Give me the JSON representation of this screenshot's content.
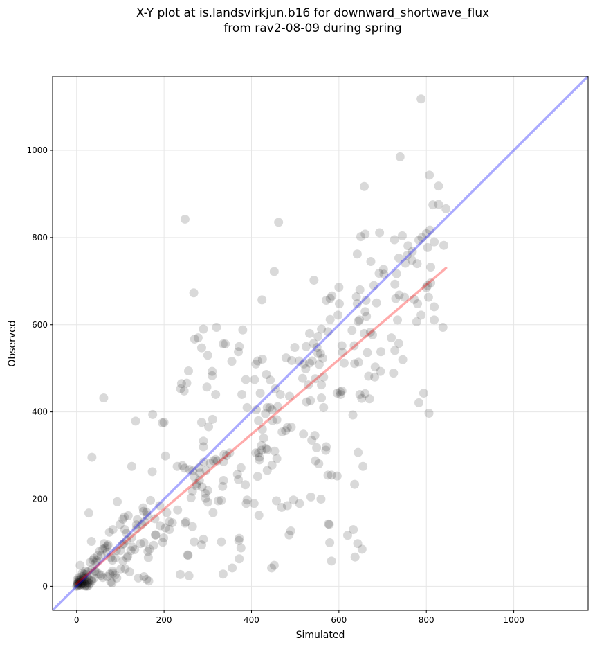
{
  "chart_data": {
    "type": "scatter",
    "title_line1": "X-Y plot at is.landsvirkjun.b16 for downward_shortwave_flux",
    "title_line2": "from rav2-08-09 during spring",
    "xlabel": "Simulated",
    "ylabel": "Observed",
    "xlim": [
      -55,
      1170
    ],
    "ylim": [
      -55,
      1170
    ],
    "xticks": [
      0,
      200,
      400,
      600,
      800,
      1000
    ],
    "yticks": [
      0,
      200,
      400,
      600,
      800,
      1000
    ],
    "grid": true,
    "colors": {
      "points": "#000000",
      "identity": "#0000ff",
      "fit": "#ff0000",
      "grid": "#e6e6e6"
    },
    "identity_line": {
      "x": [
        -55,
        1170
      ],
      "y": [
        -55,
        1170
      ]
    },
    "fit_line": {
      "x": [
        0,
        845
      ],
      "y": [
        6,
        730
      ]
    },
    "points": [
      [
        788,
        1118
      ],
      [
        740,
        985
      ],
      [
        807,
        943
      ],
      [
        828,
        918
      ],
      [
        658,
        917
      ],
      [
        815,
        875
      ],
      [
        828,
        876
      ],
      [
        845,
        866
      ],
      [
        248,
        842
      ],
      [
        462,
        835
      ],
      [
        808,
        817
      ],
      [
        660,
        808
      ],
      [
        693,
        811
      ],
      [
        800,
        809
      ],
      [
        745,
        804
      ],
      [
        790,
        800
      ],
      [
        783,
        794
      ],
      [
        818,
        790
      ],
      [
        727,
        795
      ],
      [
        758,
        781
      ],
      [
        840,
        782
      ],
      [
        650,
        802
      ],
      [
        768,
        768
      ],
      [
        803,
        777
      ],
      [
        756,
        759
      ],
      [
        673,
        745
      ],
      [
        737,
        753
      ],
      [
        767,
        748
      ],
      [
        752,
        741
      ],
      [
        692,
        718
      ],
      [
        703,
        716
      ],
      [
        732,
        717
      ],
      [
        810,
        732
      ],
      [
        779,
        740
      ],
      [
        702,
        727
      ],
      [
        452,
        722
      ],
      [
        728,
        693
      ],
      [
        730,
        660
      ],
      [
        738,
        668
      ],
      [
        772,
        658
      ],
      [
        750,
        663
      ],
      [
        800,
        685
      ],
      [
        680,
        690
      ],
      [
        648,
        680
      ],
      [
        640,
        664
      ],
      [
        662,
        656
      ],
      [
        686,
        650
      ],
      [
        584,
        666
      ],
      [
        580,
        660
      ],
      [
        600,
        686
      ],
      [
        571,
        656
      ],
      [
        810,
        696
      ],
      [
        803,
        690
      ],
      [
        818,
        641
      ],
      [
        805,
        663
      ],
      [
        788,
        622
      ],
      [
        818,
        611
      ],
      [
        838,
        594
      ],
      [
        780,
        648
      ],
      [
        543,
        702
      ],
      [
        268,
        673
      ],
      [
        424,
        657
      ],
      [
        642,
        762
      ],
      [
        642,
        648
      ],
      [
        601,
        648
      ],
      [
        598,
        622
      ],
      [
        575,
        584
      ],
      [
        560,
        590
      ],
      [
        580,
        612
      ],
      [
        552,
        573
      ],
      [
        542,
        557
      ],
      [
        533,
        580
      ],
      [
        630,
        587
      ],
      [
        647,
        611
      ],
      [
        660,
        630
      ],
      [
        663,
        619
      ],
      [
        644,
        608
      ],
      [
        658,
        580
      ],
      [
        672,
        583
      ],
      [
        677,
        577
      ],
      [
        635,
        552
      ],
      [
        607,
        552
      ],
      [
        608,
        537
      ],
      [
        665,
        536
      ],
      [
        696,
        538
      ],
      [
        720,
        570
      ],
      [
        728,
        541
      ],
      [
        746,
        520
      ],
      [
        737,
        557
      ],
      [
        778,
        607
      ],
      [
        734,
        611
      ],
      [
        725,
        489
      ],
      [
        682,
        480
      ],
      [
        668,
        482
      ],
      [
        683,
        503
      ],
      [
        695,
        493
      ],
      [
        612,
        512
      ],
      [
        636,
        511
      ],
      [
        645,
        514
      ],
      [
        563,
        523
      ],
      [
        555,
        509
      ],
      [
        539,
        517
      ],
      [
        520,
        510
      ],
      [
        509,
        517
      ],
      [
        479,
        524
      ],
      [
        499,
        548
      ],
      [
        525,
        550
      ],
      [
        533,
        512
      ],
      [
        550,
        548
      ],
      [
        558,
        534
      ],
      [
        552,
        534
      ],
      [
        524,
        499
      ],
      [
        517,
        477
      ],
      [
        565,
        480
      ],
      [
        546,
        476
      ],
      [
        560,
        462
      ],
      [
        530,
        462
      ],
      [
        535,
        426
      ],
      [
        526,
        423
      ],
      [
        560,
        432
      ],
      [
        565,
        410
      ],
      [
        596,
        443
      ],
      [
        604,
        440
      ],
      [
        607,
        448
      ],
      [
        603,
        446
      ],
      [
        632,
        393
      ],
      [
        648,
        440
      ],
      [
        670,
        430
      ],
      [
        652,
        431
      ],
      [
        660,
        442
      ],
      [
        783,
        421
      ],
      [
        794,
        443
      ],
      [
        806,
        397
      ],
      [
        290,
        590
      ],
      [
        300,
        530
      ],
      [
        310,
        493
      ],
      [
        310,
        483
      ],
      [
        340,
        556
      ],
      [
        335,
        556
      ],
      [
        355,
        516
      ],
      [
        372,
        550
      ],
      [
        380,
        588
      ],
      [
        387,
        474
      ],
      [
        407,
        474
      ],
      [
        410,
        510
      ],
      [
        414,
        517
      ],
      [
        425,
        521
      ],
      [
        434,
        486
      ],
      [
        443,
        473
      ],
      [
        454,
        453
      ],
      [
        420,
        443
      ],
      [
        466,
        440
      ],
      [
        487,
        436
      ],
      [
        492,
        518
      ],
      [
        286,
        547
      ],
      [
        320,
        594
      ],
      [
        270,
        567
      ],
      [
        278,
        570
      ],
      [
        256,
        494
      ],
      [
        252,
        466
      ],
      [
        238,
        453
      ],
      [
        196,
        375
      ],
      [
        174,
        394
      ],
      [
        135,
        379
      ],
      [
        62,
        432
      ],
      [
        35,
        296
      ],
      [
        126,
        275
      ],
      [
        173,
        263
      ],
      [
        203,
        299
      ],
      [
        200,
        376
      ],
      [
        240,
        465
      ],
      [
        246,
        448
      ],
      [
        298,
        457
      ],
      [
        370,
        538
      ],
      [
        378,
        440
      ],
      [
        390,
        410
      ],
      [
        318,
        440
      ],
      [
        311,
        383
      ],
      [
        302,
        366
      ],
      [
        286,
        376
      ],
      [
        290,
        333
      ],
      [
        290,
        320
      ],
      [
        280,
        272
      ],
      [
        242,
        277
      ],
      [
        247,
        271
      ],
      [
        258,
        268
      ],
      [
        266,
        265
      ],
      [
        269,
        251
      ],
      [
        274,
        230
      ],
      [
        282,
        260
      ],
      [
        291,
        285
      ],
      [
        296,
        266
      ],
      [
        306,
        282
      ],
      [
        313,
        288
      ],
      [
        318,
        291
      ],
      [
        322,
        288
      ],
      [
        336,
        286
      ],
      [
        337,
        302
      ],
      [
        343,
        300
      ],
      [
        350,
        306
      ],
      [
        368,
        257
      ],
      [
        376,
        272
      ],
      [
        370,
        245
      ],
      [
        386,
        233
      ],
      [
        410,
        306
      ],
      [
        418,
        296
      ],
      [
        423,
        312
      ],
      [
        428,
        340
      ],
      [
        433,
        316
      ],
      [
        425,
        360
      ],
      [
        416,
        380
      ],
      [
        411,
        405
      ],
      [
        436,
        410
      ],
      [
        442,
        410
      ],
      [
        447,
        405
      ],
      [
        432,
        396
      ],
      [
        448,
        380
      ],
      [
        458,
        382
      ],
      [
        460,
        412
      ],
      [
        470,
        354
      ],
      [
        478,
        357
      ],
      [
        482,
        364
      ],
      [
        491,
        365
      ],
      [
        519,
        349
      ],
      [
        538,
        335
      ],
      [
        545,
        346
      ],
      [
        549,
        318
      ],
      [
        571,
        320
      ],
      [
        570,
        312
      ],
      [
        596,
        253
      ],
      [
        583,
        255
      ],
      [
        575,
        255
      ],
      [
        546,
        288
      ],
      [
        554,
        281
      ],
      [
        644,
        307
      ],
      [
        655,
        275
      ],
      [
        636,
        234
      ],
      [
        447,
        278
      ],
      [
        453,
        310
      ],
      [
        458,
        293
      ],
      [
        416,
        306
      ],
      [
        418,
        290
      ],
      [
        436,
        313
      ],
      [
        423,
        323
      ],
      [
        436,
        266
      ],
      [
        414,
        252
      ],
      [
        390,
        198
      ],
      [
        388,
        190
      ],
      [
        406,
        190
      ],
      [
        417,
        163
      ],
      [
        457,
        196
      ],
      [
        469,
        181
      ],
      [
        482,
        185
      ],
      [
        490,
        127
      ],
      [
        486,
        118
      ],
      [
        496,
        198
      ],
      [
        510,
        190
      ],
      [
        536,
        205
      ],
      [
        559,
        200
      ],
      [
        578,
        142
      ],
      [
        576,
        143
      ],
      [
        579,
        100
      ],
      [
        620,
        117
      ],
      [
        633,
        130
      ],
      [
        643,
        98
      ],
      [
        653,
        85
      ],
      [
        637,
        67
      ],
      [
        583,
        58
      ],
      [
        446,
        42
      ],
      [
        452,
        48
      ],
      [
        356,
        42
      ],
      [
        335,
        28
      ],
      [
        372,
        63
      ],
      [
        371,
        105
      ],
      [
        372,
        110
      ],
      [
        376,
        88
      ],
      [
        336,
        243
      ],
      [
        334,
        229
      ],
      [
        331,
        197
      ],
      [
        324,
        196
      ],
      [
        312,
        169
      ],
      [
        300,
        193
      ],
      [
        295,
        202
      ],
      [
        294,
        213
      ],
      [
        300,
        220
      ],
      [
        287,
        228
      ],
      [
        281,
        243
      ],
      [
        274,
        235
      ],
      [
        265,
        218
      ],
      [
        262,
        203
      ],
      [
        248,
        145
      ],
      [
        250,
        148
      ],
      [
        265,
        137
      ],
      [
        269,
        102
      ],
      [
        286,
        95
      ],
      [
        290,
        108
      ],
      [
        331,
        102
      ],
      [
        255,
        71
      ],
      [
        254,
        72
      ],
      [
        237,
        27
      ],
      [
        257,
        24
      ],
      [
        230,
        275
      ],
      [
        231,
        175
      ],
      [
        219,
        146
      ],
      [
        212,
        148
      ],
      [
        206,
        169
      ],
      [
        212,
        130
      ],
      [
        203,
        134
      ],
      [
        199,
        111
      ],
      [
        197,
        101
      ],
      [
        179,
        155
      ],
      [
        181,
        118
      ],
      [
        190,
        185
      ],
      [
        191,
        139
      ],
      [
        169,
        197
      ],
      [
        160,
        170
      ],
      [
        152,
        180
      ],
      [
        153,
        172
      ],
      [
        161,
        162
      ],
      [
        155,
        148
      ],
      [
        149,
        142
      ],
      [
        139,
        153
      ],
      [
        137,
        141
      ],
      [
        137,
        132
      ],
      [
        126,
        112
      ],
      [
        118,
        162
      ],
      [
        109,
        159
      ],
      [
        106,
        154
      ],
      [
        93,
        194
      ],
      [
        99,
        142
      ],
      [
        110,
        130
      ],
      [
        114,
        122
      ],
      [
        115,
        105
      ],
      [
        108,
        98
      ],
      [
        104,
        95
      ],
      [
        100,
        82
      ],
      [
        91,
        82
      ],
      [
        82,
        60
      ],
      [
        88,
        65
      ],
      [
        78,
        66
      ],
      [
        70,
        78
      ],
      [
        63,
        98
      ],
      [
        65,
        88
      ],
      [
        70,
        92
      ],
      [
        60,
        85
      ],
      [
        53,
        81
      ],
      [
        56,
        71
      ],
      [
        48,
        70
      ],
      [
        46,
        59
      ],
      [
        44,
        55
      ],
      [
        40,
        64
      ],
      [
        37,
        60
      ],
      [
        31,
        55
      ],
      [
        35,
        39
      ],
      [
        41,
        35
      ],
      [
        45,
        33
      ],
      [
        51,
        28
      ],
      [
        56,
        25
      ],
      [
        60,
        20
      ],
      [
        70,
        22
      ],
      [
        76,
        28
      ],
      [
        82,
        35
      ],
      [
        88,
        26
      ],
      [
        92,
        19
      ],
      [
        101,
        40
      ],
      [
        106,
        58
      ],
      [
        115,
        65
      ],
      [
        124,
        82
      ],
      [
        128,
        90
      ],
      [
        117,
        69
      ],
      [
        111,
        40
      ],
      [
        121,
        33
      ],
      [
        141,
        19
      ],
      [
        160,
        16
      ],
      [
        165,
        12
      ],
      [
        154,
        22
      ],
      [
        164,
        66
      ],
      [
        163,
        80
      ],
      [
        167,
        85
      ],
      [
        176,
        94
      ],
      [
        180,
        118
      ],
      [
        154,
        100
      ],
      [
        146,
        98
      ],
      [
        133,
        84
      ],
      [
        83,
        130
      ],
      [
        75,
        124
      ],
      [
        72,
        95
      ],
      [
        28,
        168
      ],
      [
        34,
        103
      ],
      [
        20,
        35
      ],
      [
        17,
        28
      ],
      [
        25,
        33
      ],
      [
        24,
        21
      ],
      [
        28,
        15
      ],
      [
        34,
        15
      ],
      [
        40,
        19
      ],
      [
        35,
        12
      ],
      [
        78,
        10
      ],
      [
        83,
        30
      ],
      [
        81,
        8
      ],
      [
        8,
        48
      ],
      [
        13,
        30
      ],
      [
        15,
        22
      ],
      [
        22,
        27
      ],
      [
        15,
        17
      ],
      [
        12,
        12
      ],
      [
        8,
        10
      ],
      [
        5,
        8
      ],
      [
        3,
        5
      ],
      [
        2,
        3
      ],
      [
        4,
        14
      ],
      [
        10,
        5
      ],
      [
        14,
        4
      ],
      [
        18,
        6
      ],
      [
        21,
        3
      ],
      [
        25,
        7
      ],
      [
        18,
        18
      ],
      [
        9,
        3
      ],
      [
        4,
        2
      ],
      [
        6,
        12
      ],
      [
        3,
        8
      ],
      [
        12,
        6
      ],
      [
        16,
        10
      ],
      [
        22,
        12
      ],
      [
        26,
        9
      ],
      [
        30,
        6
      ],
      [
        1,
        15
      ],
      [
        5,
        20
      ],
      [
        11,
        22
      ],
      [
        0,
        0
      ],
      [
        2,
        6
      ],
      [
        7,
        4
      ],
      [
        19,
        1
      ],
      [
        23,
        0
      ],
      [
        27,
        2
      ],
      [
        13,
        8
      ],
      [
        8,
        16
      ]
    ]
  }
}
